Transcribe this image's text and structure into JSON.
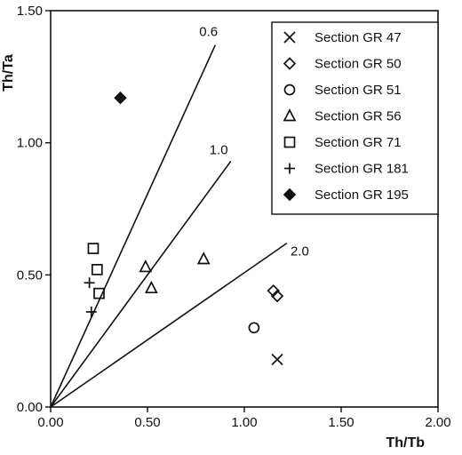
{
  "chart_data": {
    "type": "scatter",
    "title": "",
    "xlabel": "Th/Tb",
    "ylabel": "Th/Ta",
    "xlim": [
      0,
      2.0
    ],
    "ylim": [
      0,
      1.5
    ],
    "x_ticks": [
      "0.00",
      "0.50",
      "1.00",
      "1.50",
      "2.00"
    ],
    "y_ticks": [
      "0.00",
      "0.50",
      "1.00",
      "1.50"
    ],
    "grid": false,
    "legend_position": "top-right",
    "reference_lines": [
      {
        "label": "0.6",
        "x_end": 0.85,
        "y_end": 1.37
      },
      {
        "label": "1.0",
        "x_end": 0.93,
        "y_end": 0.93
      },
      {
        "label": "2.0",
        "x_end": 1.22,
        "y_end": 0.62
      }
    ],
    "series": [
      {
        "name": "Section GR 47",
        "marker": "x",
        "points": [
          [
            1.17,
            0.18
          ]
        ]
      },
      {
        "name": "Section GR 50",
        "marker": "diamond",
        "points": [
          [
            1.15,
            0.44
          ],
          [
            1.17,
            0.42
          ]
        ]
      },
      {
        "name": "Section GR 51",
        "marker": "circle",
        "points": [
          [
            1.05,
            0.3
          ]
        ]
      },
      {
        "name": "Section GR 56",
        "marker": "triangle",
        "points": [
          [
            0.49,
            0.53
          ],
          [
            0.52,
            0.45
          ],
          [
            0.79,
            0.56
          ]
        ]
      },
      {
        "name": "Section GR 71",
        "marker": "square",
        "points": [
          [
            0.22,
            0.6
          ],
          [
            0.24,
            0.52
          ],
          [
            0.25,
            0.43
          ]
        ]
      },
      {
        "name": "Section GR 181",
        "marker": "plus",
        "points": [
          [
            0.2,
            0.47
          ],
          [
            0.21,
            0.36
          ]
        ]
      },
      {
        "name": "Section GR 195",
        "marker": "filled-diamond",
        "points": [
          [
            0.36,
            1.17
          ]
        ]
      }
    ]
  }
}
